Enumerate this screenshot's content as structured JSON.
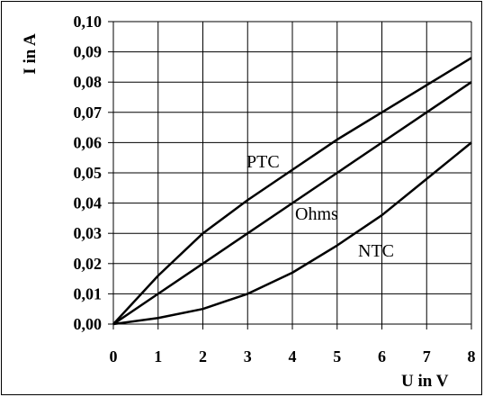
{
  "chart_data": {
    "type": "line",
    "title": "",
    "xlabel": "U in V",
    "ylabel": "I in A",
    "xlim": [
      0,
      8
    ],
    "ylim": [
      0,
      0.1
    ],
    "grid": true,
    "x_ticks": [
      "0",
      "1",
      "2",
      "3",
      "4",
      "5",
      "6",
      "7",
      "8"
    ],
    "y_ticks": [
      "0,00",
      "0,01",
      "0,02",
      "0,03",
      "0,04",
      "0,05",
      "0,06",
      "0,07",
      "0,08",
      "0,09",
      "0,10"
    ],
    "series": [
      {
        "name": "PTC",
        "x": [
          0,
          1,
          2,
          3,
          4,
          5,
          6,
          7,
          8
        ],
        "y": [
          0,
          0.016,
          0.03,
          0.041,
          0.051,
          0.061,
          0.07,
          0.079,
          0.088
        ]
      },
      {
        "name": "Ohms",
        "x": [
          0,
          1,
          2,
          3,
          4,
          5,
          6,
          7,
          8
        ],
        "y": [
          0,
          0.01,
          0.02,
          0.03,
          0.04,
          0.05,
          0.06,
          0.07,
          0.08
        ]
      },
      {
        "name": "NTC",
        "x": [
          0,
          1,
          2,
          3,
          4,
          5,
          6,
          7,
          8
        ],
        "y": [
          0,
          0.002,
          0.005,
          0.01,
          0.017,
          0.026,
          0.036,
          0.048,
          0.06
        ]
      }
    ],
    "colors": {
      "line": "#000000",
      "grid": "#000000",
      "background": "#ffffff"
    }
  }
}
